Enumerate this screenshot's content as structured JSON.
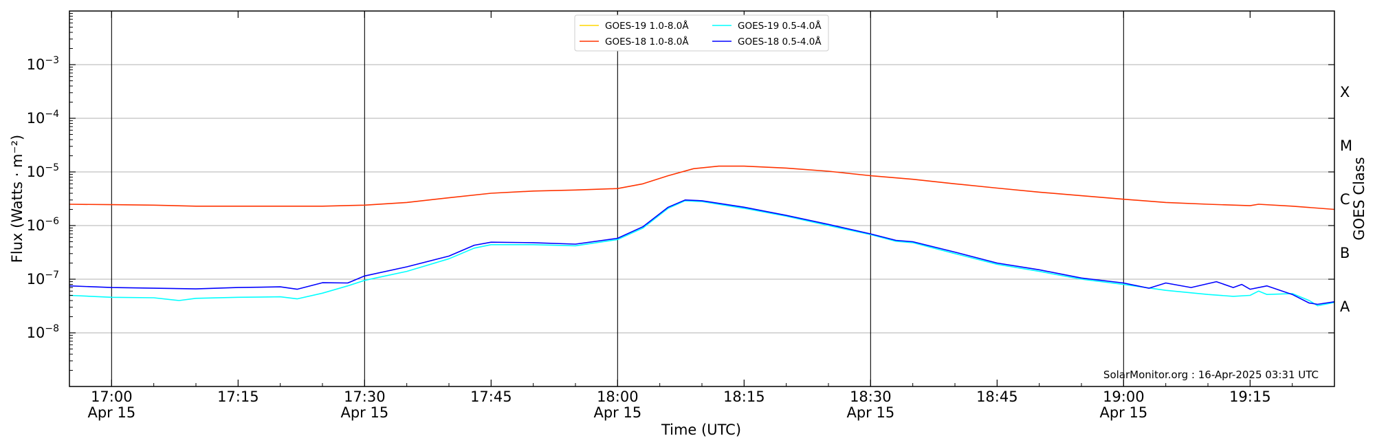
{
  "chart_data": {
    "type": "line",
    "xlabel": "Time (UTC)",
    "ylabel": "Flux (Watts · m⁻²)",
    "ylabel_right": "GOES Class",
    "y_scale": "log",
    "ylim": [
      1e-09,
      0.01
    ],
    "xlim": [
      "2025-04-15 16:55",
      "2025-04-15 19:25"
    ],
    "grid": "horizontal",
    "legend_placement": "top-center",
    "x_ticks": [
      {
        "time": "17:00",
        "label": "17:00",
        "sublabel": "Apr 15"
      },
      {
        "time": "17:15",
        "label": "17:15",
        "sublabel": ""
      },
      {
        "time": "17:30",
        "label": "17:30",
        "sublabel": "Apr 15"
      },
      {
        "time": "17:45",
        "label": "17:45",
        "sublabel": ""
      },
      {
        "time": "18:00",
        "label": "18:00",
        "sublabel": "Apr 15"
      },
      {
        "time": "18:15",
        "label": "18:15",
        "sublabel": ""
      },
      {
        "time": "18:30",
        "label": "18:30",
        "sublabel": "Apr 15"
      },
      {
        "time": "18:45",
        "label": "18:45",
        "sublabel": ""
      },
      {
        "time": "19:00",
        "label": "19:00",
        "sublabel": "Apr 15"
      },
      {
        "time": "19:15",
        "label": "19:15",
        "sublabel": ""
      }
    ],
    "half_hour_lines": [
      "17:00",
      "17:30",
      "18:00",
      "18:30",
      "19:00"
    ],
    "y_ticks": [
      {
        "value": 1e-08,
        "base": "10",
        "exp": "−8"
      },
      {
        "value": 1e-07,
        "base": "10",
        "exp": "−7"
      },
      {
        "value": 1e-06,
        "base": "10",
        "exp": "−6"
      },
      {
        "value": 1e-05,
        "base": "10",
        "exp": "−5"
      },
      {
        "value": 0.0001,
        "base": "10",
        "exp": "−4"
      },
      {
        "value": 0.001,
        "base": "10",
        "exp": "−3"
      }
    ],
    "goes_classes": [
      {
        "label": "A",
        "value": 3.16e-08
      },
      {
        "label": "B",
        "value": 3.16e-07
      },
      {
        "label": "C",
        "value": 3.16e-06
      },
      {
        "label": "M",
        "value": 3.16e-05
      },
      {
        "label": "X",
        "value": 0.000316
      }
    ],
    "series": [
      {
        "name": "GOES-19 1.0-8.0Å",
        "color": "#ffd700",
        "points": []
      },
      {
        "name": "GOES-18 1.0-8.0Å",
        "color": "#ff3300",
        "points": [
          [
            "16:55",
            2.5e-06
          ],
          [
            "17:00",
            2.45e-06
          ],
          [
            "17:05",
            2.4e-06
          ],
          [
            "17:10",
            2.3e-06
          ],
          [
            "17:15",
            2.3e-06
          ],
          [
            "17:20",
            2.3e-06
          ],
          [
            "17:25",
            2.3e-06
          ],
          [
            "17:30",
            2.4e-06
          ],
          [
            "17:35",
            2.7e-06
          ],
          [
            "17:40",
            3.3e-06
          ],
          [
            "17:45",
            4e-06
          ],
          [
            "17:50",
            4.4e-06
          ],
          [
            "17:55",
            4.6e-06
          ],
          [
            "18:00",
            4.9e-06
          ],
          [
            "18:03",
            6e-06
          ],
          [
            "18:06",
            8.5e-06
          ],
          [
            "18:09",
            1.15e-05
          ],
          [
            "18:12",
            1.28e-05
          ],
          [
            "18:15",
            1.28e-05
          ],
          [
            "18:20",
            1.18e-05
          ],
          [
            "18:25",
            1.03e-05
          ],
          [
            "18:30",
            8.5e-06
          ],
          [
            "18:35",
            7.3e-06
          ],
          [
            "18:40",
            6e-06
          ],
          [
            "18:45",
            5e-06
          ],
          [
            "18:50",
            4.2e-06
          ],
          [
            "18:55",
            3.6e-06
          ],
          [
            "19:00",
            3.1e-06
          ],
          [
            "19:05",
            2.7e-06
          ],
          [
            "19:10",
            2.5e-06
          ],
          [
            "19:15",
            2.35e-06
          ],
          [
            "19:16",
            2.5e-06
          ],
          [
            "19:20",
            2.3e-06
          ],
          [
            "19:25",
            2e-06
          ]
        ]
      },
      {
        "name": "GOES-19 0.5-4.0Å",
        "color": "#00ffff",
        "points": [
          [
            "16:55",
            5e-08
          ],
          [
            "17:00",
            4.6e-08
          ],
          [
            "17:05",
            4.5e-08
          ],
          [
            "17:08",
            4e-08
          ],
          [
            "17:10",
            4.4e-08
          ],
          [
            "17:15",
            4.6e-08
          ],
          [
            "17:20",
            4.7e-08
          ],
          [
            "17:22",
            4.3e-08
          ],
          [
            "17:25",
            5.5e-08
          ],
          [
            "17:28",
            7.5e-08
          ],
          [
            "17:30",
            9.5e-08
          ],
          [
            "17:35",
            1.4e-07
          ],
          [
            "17:40",
            2.4e-07
          ],
          [
            "17:43",
            3.8e-07
          ],
          [
            "17:45",
            4.4e-07
          ],
          [
            "17:50",
            4.4e-07
          ],
          [
            "17:55",
            4.2e-07
          ],
          [
            "18:00",
            5.5e-07
          ],
          [
            "18:03",
            9e-07
          ],
          [
            "18:06",
            2.1e-06
          ],
          [
            "18:08",
            2.9e-06
          ],
          [
            "18:10",
            2.8e-06
          ],
          [
            "18:15",
            2.1e-06
          ],
          [
            "18:20",
            1.5e-06
          ],
          [
            "18:25",
            1e-06
          ],
          [
            "18:30",
            6.8e-07
          ],
          [
            "18:33",
            5.1e-07
          ],
          [
            "18:35",
            4.8e-07
          ],
          [
            "18:40",
            3e-07
          ],
          [
            "18:45",
            1.9e-07
          ],
          [
            "18:50",
            1.4e-07
          ],
          [
            "18:55",
            1e-07
          ],
          [
            "19:00",
            8e-08
          ],
          [
            "19:05",
            6.2e-08
          ],
          [
            "19:10",
            5.2e-08
          ],
          [
            "19:13",
            4.8e-08
          ],
          [
            "19:15",
            5e-08
          ],
          [
            "19:16",
            6e-08
          ],
          [
            "19:17",
            5.2e-08
          ],
          [
            "19:20",
            5.4e-08
          ],
          [
            "19:22",
            4e-08
          ],
          [
            "19:23",
            3.2e-08
          ],
          [
            "19:25",
            3.7e-08
          ]
        ]
      },
      {
        "name": "GOES-18 0.5-4.0Å",
        "color": "#0000ff",
        "points": [
          [
            "16:55",
            7.5e-08
          ],
          [
            "17:00",
            7e-08
          ],
          [
            "17:05",
            6.8e-08
          ],
          [
            "17:10",
            6.6e-08
          ],
          [
            "17:15",
            7e-08
          ],
          [
            "17:20",
            7.2e-08
          ],
          [
            "17:22",
            6.5e-08
          ],
          [
            "17:25",
            8.6e-08
          ],
          [
            "17:28",
            8.5e-08
          ],
          [
            "17:30",
            1.15e-07
          ],
          [
            "17:35",
            1.7e-07
          ],
          [
            "17:40",
            2.7e-07
          ],
          [
            "17:43",
            4.3e-07
          ],
          [
            "17:45",
            4.9e-07
          ],
          [
            "17:50",
            4.8e-07
          ],
          [
            "17:55",
            4.5e-07
          ],
          [
            "18:00",
            5.8e-07
          ],
          [
            "18:03",
            9.5e-07
          ],
          [
            "18:06",
            2.2e-06
          ],
          [
            "18:08",
            3e-06
          ],
          [
            "18:10",
            2.9e-06
          ],
          [
            "18:15",
            2.2e-06
          ],
          [
            "18:20",
            1.55e-06
          ],
          [
            "18:25",
            1.05e-06
          ],
          [
            "18:30",
            7e-07
          ],
          [
            "18:33",
            5.3e-07
          ],
          [
            "18:35",
            5e-07
          ],
          [
            "18:40",
            3.2e-07
          ],
          [
            "18:45",
            2e-07
          ],
          [
            "18:50",
            1.5e-07
          ],
          [
            "18:55",
            1.05e-07
          ],
          [
            "19:00",
            8.5e-08
          ],
          [
            "19:03",
            6.8e-08
          ],
          [
            "19:05",
            8.5e-08
          ],
          [
            "19:08",
            7e-08
          ],
          [
            "19:11",
            9e-08
          ],
          [
            "19:13",
            7e-08
          ],
          [
            "19:14",
            8e-08
          ],
          [
            "19:15",
            6.5e-08
          ],
          [
            "19:17",
            7.5e-08
          ],
          [
            "19:20",
            5.2e-08
          ],
          [
            "19:22",
            3.6e-08
          ],
          [
            "19:23",
            3.4e-08
          ],
          [
            "19:25",
            3.8e-08
          ]
        ]
      }
    ]
  },
  "credit": "SolarMonitor.org : 16-Apr-2025 03:31 UTC"
}
